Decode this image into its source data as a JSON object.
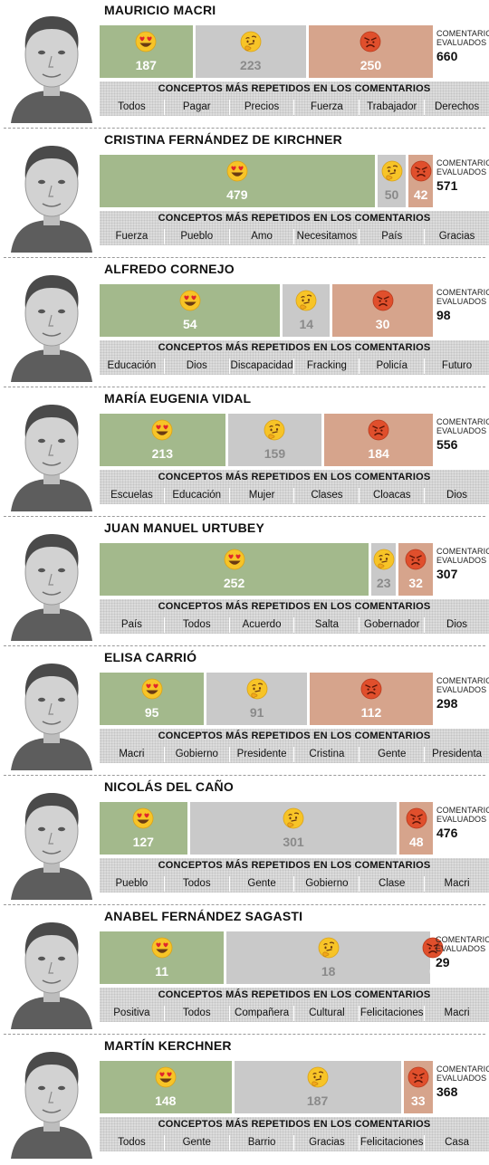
{
  "chart_data": {
    "type": "bar",
    "strip_title": "CONCEPTOS MÁS REPETIDOS EN LOS COMENTARIOS",
    "total_label": "COMENTARIOS\nEVALUADOS",
    "series_emoji": [
      "heart-eyes-emoji",
      "thinking-emoji",
      "angry-emoji"
    ],
    "colors": {
      "love": "#a3b98c",
      "think": "#c9c9c9",
      "angry": "#d6a48c"
    },
    "politicians": [
      {
        "name": "MAURICIO MACRI",
        "values": [
          187,
          223,
          250
        ],
        "total": "660",
        "terms": [
          "Todos",
          "Pagar",
          "Precios",
          "Fuerza",
          "Trabajador",
          "Derechos"
        ]
      },
      {
        "name": "CRISTINA FERNÁNDEZ DE KIRCHNER",
        "values": [
          479,
          50,
          42
        ],
        "total": "571",
        "terms": [
          "Fuerza",
          "Pueblo",
          "Amo",
          "Necesitamos",
          "País",
          "Gracias"
        ]
      },
      {
        "name": "ALFREDO CORNEJO",
        "values": [
          54,
          14,
          30
        ],
        "total": "98",
        "terms": [
          "Educación",
          "Dios",
          "Discapacidad",
          "Fracking",
          "Policía",
          "Futuro"
        ]
      },
      {
        "name": "MARÍA EUGENIA VIDAL",
        "values": [
          213,
          159,
          184
        ],
        "total": "556",
        "terms": [
          "Escuelas",
          "Educación",
          "Mujer",
          "Clases",
          "Cloacas",
          "Dios"
        ]
      },
      {
        "name": "JUAN MANUEL URTUBEY",
        "values": [
          252,
          23,
          32
        ],
        "total": "307",
        "terms": [
          "País",
          "Todos",
          "Acuerdo",
          "Salta",
          "Gobernador",
          "Dios"
        ]
      },
      {
        "name": "ELISA CARRIÓ",
        "values": [
          95,
          91,
          112
        ],
        "total": "298",
        "terms": [
          "Macri",
          "Gobierno",
          "Presidente",
          "Cristina",
          "Gente",
          "Presidenta"
        ]
      },
      {
        "name": "NICOLÁS DEL CAÑO",
        "values": [
          127,
          301,
          48
        ],
        "total": "476",
        "terms": [
          "Pueblo",
          "Todos",
          "Gente",
          "Gobierno",
          "Clase",
          "Macri"
        ]
      },
      {
        "name": "ANABEL FERNÁNDEZ SAGASTI",
        "values": [
          11,
          18,
          0
        ],
        "total": "29",
        "terms": [
          "Positiva",
          "Todos",
          "Compañera",
          "Cultural",
          "Felicitaciones",
          "Macri"
        ]
      },
      {
        "name": "MARTÍN KERCHNER",
        "values": [
          148,
          187,
          33
        ],
        "total": "368",
        "terms": [
          "Todos",
          "Gente",
          "Barrio",
          "Gracias",
          "Felicitaciones",
          "Casa"
        ]
      }
    ]
  }
}
